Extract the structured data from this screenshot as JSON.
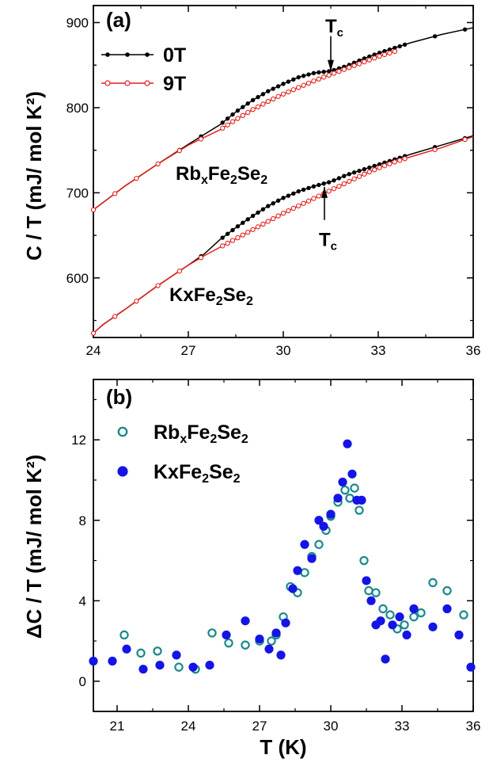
{
  "chart_data": [
    {
      "panel": "(a)",
      "type": "line",
      "xlim": [
        24,
        36
      ],
      "ylim": [
        530,
        920
      ],
      "x_ticks": [
        "24",
        "27",
        "30",
        "33",
        "36"
      ],
      "y_ticks": [
        "600",
        "700",
        "800",
        "900"
      ],
      "ylabel": "C / T (mJ/ mol K²)",
      "legend_position": "top-left",
      "legend": [
        {
          "label": "0T",
          "color": "#000000",
          "marker": "filled-circle"
        },
        {
          "label": "9T",
          "color": "#e0201b",
          "marker": "open-circle"
        }
      ],
      "series": [
        {
          "name": "0T",
          "sample": "RbxFe2Se2",
          "color": "#000000",
          "x": [
            24.0,
            24.5,
            25.0,
            26.0,
            27.0,
            28.0,
            28.5,
            29.0,
            29.5,
            30.0,
            30.5,
            31.0,
            31.5,
            32.0,
            32.5,
            33.0,
            33.5,
            34.0,
            35.0,
            36.0
          ],
          "y": [
            680,
            694,
            708,
            733,
            757,
            780,
            795,
            808,
            819,
            828,
            836,
            841,
            843,
            849,
            857,
            864,
            870,
            876,
            886,
            894
          ]
        },
        {
          "name": "9T",
          "sample": "RbxFe2Se2",
          "color": "#e0201b",
          "x": [
            24.0,
            24.5,
            25.0,
            26.0,
            27.0,
            28.0,
            28.5,
            29.0,
            29.5,
            30.0,
            30.5,
            31.0,
            31.5,
            32.0,
            32.5,
            33.0,
            33.6
          ],
          "y": [
            680,
            694,
            708,
            733,
            756,
            774,
            786,
            797,
            807,
            816,
            824,
            832,
            839,
            846,
            853,
            860,
            867
          ]
        },
        {
          "name": "0T",
          "sample": "KxFe2Se2",
          "color": "#000000",
          "x": [
            24.0,
            24.3,
            25.0,
            26.0,
            27.0,
            27.5,
            28.0,
            28.5,
            29.0,
            29.5,
            30.0,
            30.5,
            31.0,
            31.5,
            32.0,
            32.5,
            33.0,
            33.5,
            34.0,
            35.0,
            36.0
          ],
          "y": [
            535,
            545,
            563,
            590,
            615,
            628,
            645,
            659,
            672,
            684,
            694,
            702,
            708,
            713,
            721,
            727,
            733,
            739,
            745,
            756,
            767
          ]
        },
        {
          "name": "9T",
          "sample": "KxFe2Se2",
          "color": "#e0201b",
          "x": [
            24.0,
            24.3,
            25.0,
            26.0,
            27.0,
            27.5,
            28.0,
            28.5,
            29.0,
            29.5,
            30.0,
            30.5,
            31.0,
            31.5,
            32.0,
            32.5,
            33.0,
            33.5,
            34.0,
            35.0,
            36.0
          ],
          "y": [
            535,
            545,
            563,
            590,
            615,
            626,
            636,
            646,
            656,
            666,
            676,
            685,
            694,
            703,
            712,
            721,
            729,
            736,
            742,
            753,
            766
          ]
        }
      ],
      "annotations": [
        {
          "text": "Tc",
          "x": 31.5,
          "y_text": 896,
          "arrow_from": 884,
          "arrow_to": 843
        },
        {
          "text": "Tc",
          "x": 31.3,
          "y_text": 645,
          "arrow_from": 668,
          "arrow_to": 707
        },
        {
          "text": "RbxFe2Se2",
          "x": 26.6,
          "y": 715
        },
        {
          "text": "KxFe2Se2",
          "x": 26.4,
          "y": 573
        }
      ]
    },
    {
      "panel": "(b)",
      "type": "scatter",
      "xlim": [
        20,
        36
      ],
      "ylim": [
        -1.5,
        15
      ],
      "x_ticks": [
        "21",
        "24",
        "27",
        "30",
        "33",
        "36"
      ],
      "y_ticks": [
        "0",
        "4",
        "8",
        "12"
      ],
      "xlabel": "T (K)",
      "ylabel": "ΔC / T (mJ/ mol K²)",
      "legend_position": "top-left",
      "series": [
        {
          "name": "RbxFe2Se2",
          "color": "#1a8a8a",
          "marker": "open-circle",
          "x": [
            21.3,
            22.0,
            22.7,
            23.6,
            24.3,
            25.0,
            25.7,
            26.4,
            27.0,
            27.5,
            27.7,
            28.0,
            28.3,
            28.6,
            28.9,
            29.2,
            29.5,
            29.8,
            30.0,
            30.3,
            30.6,
            30.8,
            31.0,
            31.2,
            31.4,
            31.6,
            31.9,
            32.2,
            32.5,
            32.8,
            33.1,
            33.5,
            33.8,
            34.3,
            34.9,
            35.6
          ],
          "y": [
            2.3,
            1.4,
            1.5,
            0.7,
            0.6,
            2.4,
            1.9,
            1.8,
            2.0,
            2.0,
            2.3,
            3.2,
            4.7,
            4.4,
            5.4,
            6.2,
            6.8,
            7.5,
            8.2,
            8.9,
            9.5,
            9.1,
            9.6,
            8.5,
            6.0,
            4.5,
            4.4,
            3.6,
            3.3,
            2.6,
            2.8,
            3.2,
            3.4,
            4.9,
            4.5,
            3.3
          ]
        },
        {
          "name": "KxFe2Se2",
          "color": "#1414e6",
          "marker": "filled-circle",
          "x": [
            20.0,
            20.8,
            21.4,
            22.1,
            22.8,
            23.5,
            24.2,
            24.9,
            25.6,
            26.4,
            27.0,
            27.4,
            27.7,
            27.9,
            28.1,
            28.4,
            28.6,
            28.9,
            29.2,
            29.5,
            29.7,
            30.0,
            30.3,
            30.5,
            30.7,
            30.9,
            31.1,
            31.3,
            31.5,
            31.7,
            31.9,
            32.1,
            32.3,
            32.6,
            32.9,
            33.2,
            33.5,
            34.3,
            34.9,
            35.4,
            35.9
          ],
          "y": [
            1.0,
            1.0,
            1.6,
            0.6,
            0.8,
            1.3,
            0.7,
            0.8,
            2.3,
            3.0,
            2.1,
            1.6,
            2.4,
            1.3,
            2.9,
            4.6,
            5.5,
            6.8,
            6.1,
            8.0,
            7.7,
            8.3,
            9.1,
            9.9,
            11.8,
            10.3,
            9.0,
            9.0,
            5.0,
            4.0,
            2.8,
            3.0,
            1.1,
            2.8,
            3.2,
            2.3,
            3.6,
            2.7,
            3.6,
            2.3,
            0.7
          ]
        }
      ]
    }
  ]
}
